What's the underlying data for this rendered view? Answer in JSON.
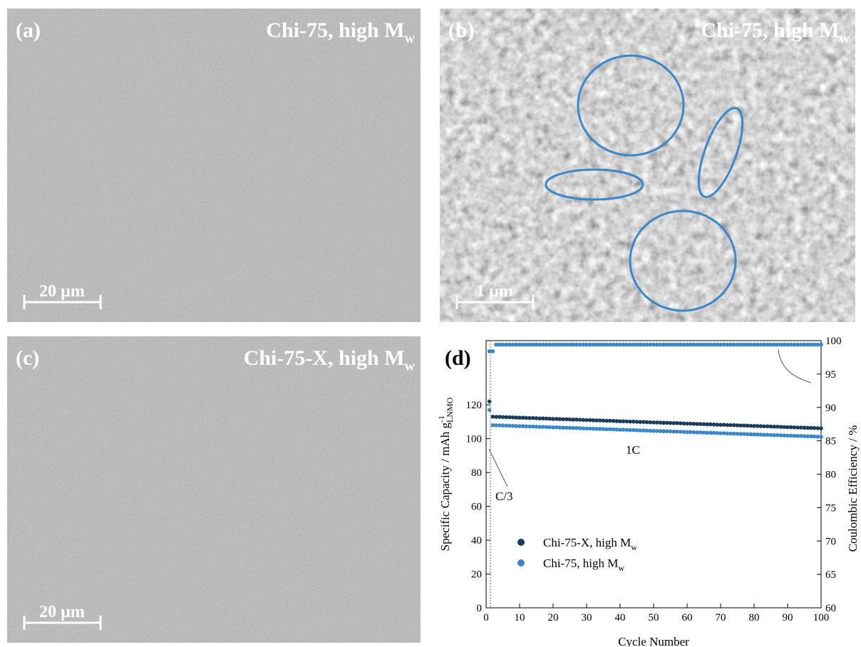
{
  "panels": [
    {
      "label": "(a)",
      "title": "Chi-75, high M",
      "title_sub": "w",
      "scale_bar": "20 µm"
    },
    {
      "label": "(b)",
      "title": "Chi-75, high M",
      "title_sub": "w",
      "scale_bar": "1 µm"
    },
    {
      "label": "(c)",
      "title": "Chi-75-X, high M",
      "title_sub": "w",
      "scale_bar": "20 µm"
    }
  ],
  "chart_data": {
    "type": "scatter",
    "panel_label": "(d)",
    "x_label": "Cycle Number",
    "y_label": "Specific Capacity / mAh g",
    "y_label_sup": "-1",
    "y_label_sub": "LNMO",
    "y2_label": "Coulombic Efficiency / %",
    "annotations": [
      "1C",
      "C/3"
    ],
    "xlim": [
      0,
      100
    ],
    "ylim": [
      0,
      158
    ],
    "y2lim": [
      60,
      100
    ],
    "xticks": [
      0,
      10,
      20,
      30,
      40,
      50,
      60,
      70,
      80,
      90,
      100
    ],
    "yticks": [
      0,
      20,
      40,
      60,
      80,
      100,
      120
    ],
    "y2ticks": [
      60,
      65,
      70,
      75,
      80,
      85,
      90,
      95,
      100
    ],
    "x": [
      1,
      2,
      3,
      4,
      5,
      6,
      7,
      8,
      9,
      10,
      11,
      12,
      13,
      14,
      15,
      16,
      17,
      18,
      19,
      20,
      21,
      22,
      23,
      24,
      25,
      26,
      27,
      28,
      29,
      30,
      31,
      32,
      33,
      34,
      35,
      36,
      37,
      38,
      39,
      40,
      41,
      42,
      43,
      44,
      45,
      46,
      47,
      48,
      49,
      50,
      51,
      52,
      53,
      54,
      55,
      56,
      57,
      58,
      59,
      60,
      61,
      62,
      63,
      64,
      65,
      66,
      67,
      68,
      69,
      70,
      71,
      72,
      73,
      74,
      75,
      76,
      77,
      78,
      79,
      80,
      81,
      82,
      83,
      84,
      85,
      86,
      87,
      88,
      89,
      90,
      91,
      92,
      93,
      94,
      95,
      96,
      97,
      98,
      99,
      100
    ],
    "series": [
      {
        "name": "Chi-75-X, high M",
        "name_sub": "w",
        "color": "#1b3b5a",
        "values": [
          122,
          113.0,
          112.9,
          112.9,
          112.8,
          112.7,
          112.7,
          112.6,
          112.5,
          112.4,
          112.4,
          112.3,
          112.2,
          112.2,
          112.1,
          112.0,
          112.0,
          111.9,
          111.8,
          111.7,
          111.7,
          111.6,
          111.5,
          111.5,
          111.4,
          111.3,
          111.3,
          111.2,
          111.1,
          111.0,
          111.0,
          110.9,
          110.8,
          110.8,
          110.7,
          110.6,
          110.6,
          110.5,
          110.4,
          110.3,
          110.3,
          110.2,
          110.1,
          110.1,
          110.0,
          109.9,
          109.9,
          109.8,
          109.7,
          109.6,
          109.6,
          109.5,
          109.4,
          109.4,
          109.3,
          109.2,
          109.2,
          109.1,
          109.0,
          108.9,
          108.9,
          108.8,
          108.7,
          108.7,
          108.6,
          108.5,
          108.5,
          108.4,
          108.3,
          108.2,
          108.2,
          108.1,
          108.0,
          108.0,
          107.9,
          107.8,
          107.8,
          107.7,
          107.6,
          107.5,
          107.5,
          107.4,
          107.3,
          107.3,
          107.2,
          107.1,
          107.1,
          107.0,
          106.9,
          106.8,
          106.8,
          106.7,
          106.6,
          106.6,
          106.5,
          106.4,
          106.4,
          106.3,
          106.2,
          106.1
        ],
        "efficiency": [
          98.4,
          98.4,
          99.4,
          99.4,
          99.4,
          99.4,
          99.4,
          99.4,
          99.4,
          99.4,
          99.4,
          99.4,
          99.4,
          99.4,
          99.4,
          99.4,
          99.4,
          99.4,
          99.4,
          99.4,
          99.4,
          99.4,
          99.4,
          99.4,
          99.4,
          99.4,
          99.4,
          99.4,
          99.4,
          99.4,
          99.4,
          99.4,
          99.4,
          99.4,
          99.4,
          99.4,
          99.4,
          99.4,
          99.4,
          99.4,
          99.4,
          99.4,
          99.4,
          99.4,
          99.4,
          99.4,
          99.4,
          99.4,
          99.4,
          99.4,
          99.4,
          99.4,
          99.4,
          99.4,
          99.4,
          99.4,
          99.4,
          99.4,
          99.4,
          99.4,
          99.4,
          99.4,
          99.4,
          99.4,
          99.4,
          99.4,
          99.4,
          99.4,
          99.4,
          99.4,
          99.4,
          99.4,
          99.4,
          99.4,
          99.4,
          99.4,
          99.4,
          99.4,
          99.4,
          99.4,
          99.4,
          99.4,
          99.4,
          99.4,
          99.4,
          99.4,
          99.4,
          99.4,
          99.4,
          99.4,
          99.4,
          99.4,
          99.4,
          99.4,
          99.4,
          99.4,
          99.4,
          99.4,
          99.4,
          99.4
        ]
      },
      {
        "name": "Chi-75, high M",
        "name_sub": "w",
        "color": "#3a87c9",
        "values": [
          117,
          108.0,
          107.9,
          107.9,
          107.8,
          107.7,
          107.7,
          107.6,
          107.5,
          107.4,
          107.4,
          107.3,
          107.2,
          107.2,
          107.1,
          107.0,
          107.0,
          106.9,
          106.8,
          106.7,
          106.7,
          106.6,
          106.5,
          106.5,
          106.4,
          106.3,
          106.3,
          106.2,
          106.1,
          106.0,
          106.0,
          105.9,
          105.8,
          105.8,
          105.7,
          105.6,
          105.6,
          105.5,
          105.4,
          105.3,
          105.3,
          105.2,
          105.1,
          105.1,
          105.0,
          104.9,
          104.9,
          104.8,
          104.7,
          104.6,
          104.6,
          104.5,
          104.4,
          104.4,
          104.3,
          104.2,
          104.2,
          104.1,
          104.0,
          103.9,
          103.9,
          103.8,
          103.7,
          103.7,
          103.6,
          103.5,
          103.5,
          103.4,
          103.3,
          103.2,
          103.2,
          103.1,
          103.0,
          103.0,
          102.9,
          102.8,
          102.8,
          102.7,
          102.6,
          102.5,
          102.5,
          102.4,
          102.3,
          102.3,
          102.2,
          102.1,
          102.1,
          102.0,
          101.9,
          101.8,
          101.8,
          101.7,
          101.6,
          101.6,
          101.5,
          101.4,
          101.4,
          101.3,
          101.2,
          101.1
        ],
        "efficiency": [
          98.4,
          98.4,
          99.4,
          99.4,
          99.4,
          99.4,
          99.4,
          99.4,
          99.4,
          99.4,
          99.4,
          99.4,
          99.4,
          99.4,
          99.4,
          99.4,
          99.4,
          99.4,
          99.4,
          99.4,
          99.4,
          99.4,
          99.4,
          99.4,
          99.4,
          99.4,
          99.4,
          99.4,
          99.4,
          99.4,
          99.4,
          99.4,
          99.4,
          99.4,
          99.4,
          99.4,
          99.4,
          99.4,
          99.4,
          99.4,
          99.4,
          99.4,
          99.4,
          99.4,
          99.4,
          99.4,
          99.4,
          99.4,
          99.4,
          99.4,
          99.4,
          99.4,
          99.4,
          99.4,
          99.4,
          99.4,
          99.4,
          99.4,
          99.4,
          99.4,
          99.4,
          99.4,
          99.4,
          99.4,
          99.4,
          99.4,
          99.4,
          99.4,
          99.4,
          99.4,
          99.4,
          99.4,
          99.4,
          99.4,
          99.4,
          99.4,
          99.4,
          99.4,
          99.4,
          99.4,
          99.4,
          99.4,
          99.4,
          99.4,
          99.4,
          99.4,
          99.4,
          99.4,
          99.4,
          99.4,
          99.4,
          99.4,
          99.4,
          99.4,
          99.4,
          99.4,
          99.4,
          99.4,
          99.4,
          99.4
        ]
      }
    ]
  }
}
